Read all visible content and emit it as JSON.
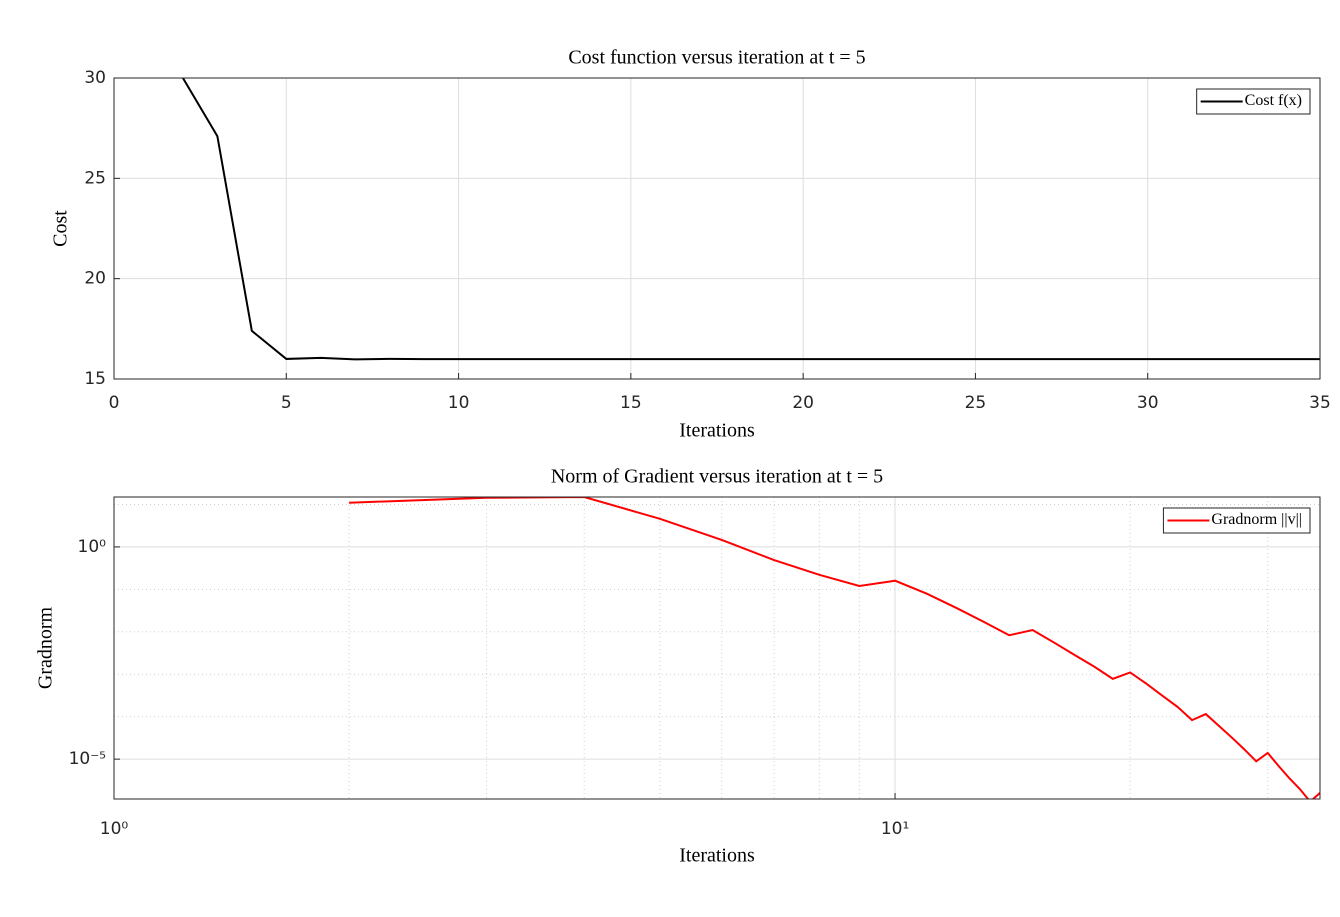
{
  "chart_data": [
    {
      "type": "line",
      "title": "Cost function versus iteration at t = 5",
      "xlabel": "Iterations",
      "ylabel": "Cost",
      "x": [
        2,
        3,
        4,
        5,
        6,
        7,
        8,
        9,
        10,
        11,
        12,
        13,
        14,
        15,
        16,
        17,
        18,
        19,
        20,
        21,
        22,
        23,
        24,
        25,
        26,
        27,
        28,
        29,
        30,
        31,
        32,
        33,
        34,
        35
      ],
      "series": [
        {
          "name": "Cost f(x)",
          "color": "#000000",
          "values": [
            30,
            27.1,
            17.4,
            16.0,
            16.05,
            15.98,
            16.0,
            15.99,
            15.99,
            15.99,
            15.99,
            15.99,
            15.99,
            15.99,
            15.99,
            15.99,
            15.99,
            15.99,
            15.99,
            15.99,
            15.99,
            15.99,
            15.99,
            15.99,
            15.99,
            15.99,
            15.99,
            15.99,
            15.99,
            15.99,
            15.99,
            15.99,
            15.99,
            15.99
          ]
        }
      ],
      "xlim": [
        0,
        35
      ],
      "ylim": [
        15,
        30
      ],
      "xticks": [
        0,
        5,
        10,
        15,
        20,
        25,
        30,
        35
      ],
      "yticks": [
        15,
        20,
        25,
        30
      ],
      "grid": true,
      "legend": "northeast",
      "xscale": "linear",
      "yscale": "linear"
    },
    {
      "type": "line",
      "title": "Norm of Gradient versus iteration at t = 5",
      "xlabel": "Iterations",
      "ylabel": "Gradnorm",
      "x": [
        2,
        3,
        4,
        5,
        6,
        7,
        8,
        9,
        10,
        11,
        12,
        13,
        14,
        15,
        16,
        17,
        18,
        19,
        20,
        21,
        22,
        23,
        24,
        25,
        26,
        27,
        28,
        29,
        30,
        31,
        32,
        33,
        34,
        35
      ],
      "series": [
        {
          "name": "Gradnorm ||v||",
          "color": "#ff0000",
          "values": [
            11,
            14.4,
            15,
            4.6,
            1.46,
            0.49,
            0.22,
            0.12,
            0.16,
            0.078,
            0.036,
            0.017,
            0.0083,
            0.011,
            0.0055,
            0.0028,
            0.0015,
            0.00078,
            0.0011,
            0.00059,
            0.00031,
            0.00017,
            8.3e-05,
            0.000115,
            6e-05,
            3.2e-05,
            1.7e-05,
            8.9e-06,
            1.4e-05,
            6.8e-06,
            3.5e-06,
            1.95e-06,
            1e-06,
            1.6e-06
          ]
        }
      ],
      "xlim": [
        1,
        35
      ],
      "ylim": [
        1.15e-06,
        15
      ],
      "xticks": [
        {
          "value": 1,
          "label": "10⁰"
        },
        {
          "value": 10,
          "label": "10¹"
        }
      ],
      "yticks": [
        {
          "value": 1e-05,
          "label": "10⁻⁵"
        },
        {
          "value": 1,
          "label": "10⁰"
        }
      ],
      "grid": true,
      "legend": "northeast",
      "xscale": "log",
      "yscale": "log"
    }
  ]
}
